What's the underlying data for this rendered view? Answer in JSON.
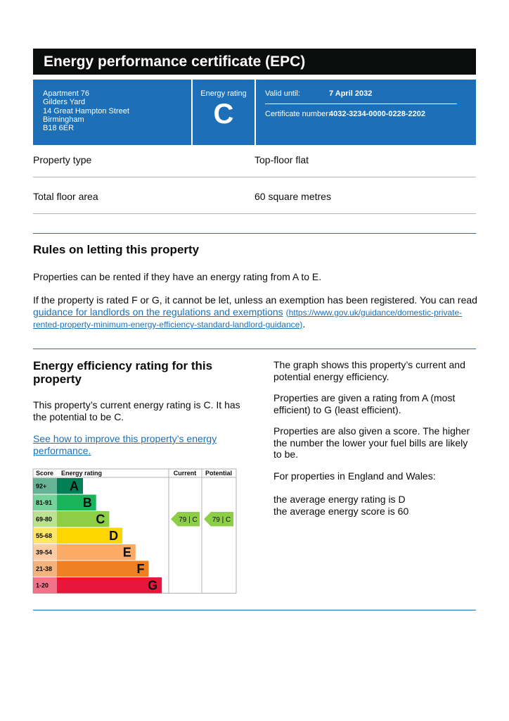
{
  "header": {
    "title": "Energy performance certificate (EPC)"
  },
  "address": [
    "Apartment 76",
    "Gilders Yard",
    "14 Great Hampton Street",
    "Birmingham",
    "B18 6ER"
  ],
  "rating_box": {
    "label": "Energy rating",
    "value": "C"
  },
  "validity": {
    "valid_label": "Valid until:",
    "valid_value": "7 April 2032",
    "cert_label": "Certificate number:",
    "cert_value": "4032-3234-0000-0228-2202"
  },
  "property_table": {
    "rows": [
      [
        "Property type",
        "Top-floor flat"
      ],
      [
        "Total floor area",
        "60 square metres"
      ]
    ]
  },
  "letting": {
    "title": "Rules on letting this property",
    "p1": "Properties can be rented if they have an energy rating from A to E.",
    "p2_text": "If the property is rated F or G, it cannot be let, unless an exemption has been registered. You can read",
    "p2_link": "guidance for landlords on the regulations and exemptions",
    "p2_url": "(https://www.gov.uk/guidance/domestic-private-rented-property-minimum-energy-efficiency-standard-landlord-guidance)",
    "p2_end": "."
  },
  "efficiency": {
    "title": "Energy efficiency rating for this property",
    "p1": "This property’s current energy rating is C. It has the potential to be C.",
    "link": "See how to improve this property’s energy performance.",
    "right": [
      "The graph shows this property’s current and potential energy efficiency.",
      "Properties are given a rating from A (most efficient) to G (least efficient).",
      "Properties are also given a score. The higher the number the lower your fuel bills are likely to be.",
      "For properties in England and Wales:"
    ],
    "average": [
      "the average energy rating is D",
      "the average energy score is 60"
    ]
  },
  "graph": {
    "headers": [
      "Score",
      "Energy rating",
      "Current",
      "Potential"
    ],
    "bands": [
      {
        "score": "92+",
        "letter": "A",
        "color": "#008054"
      },
      {
        "score": "81-91",
        "letter": "B",
        "color": "#19b459"
      },
      {
        "score": "69-80",
        "letter": "C",
        "color": "#8dce46"
      },
      {
        "score": "55-68",
        "letter": "D",
        "color": "#ffd500"
      },
      {
        "score": "39-54",
        "letter": "E",
        "color": "#fcaa65"
      },
      {
        "score": "21-38",
        "letter": "F",
        "color": "#ef8023"
      },
      {
        "score": "1-20",
        "letter": "G",
        "color": "#e9153b"
      }
    ],
    "current": "79 | C",
    "potential": "79 | C"
  }
}
